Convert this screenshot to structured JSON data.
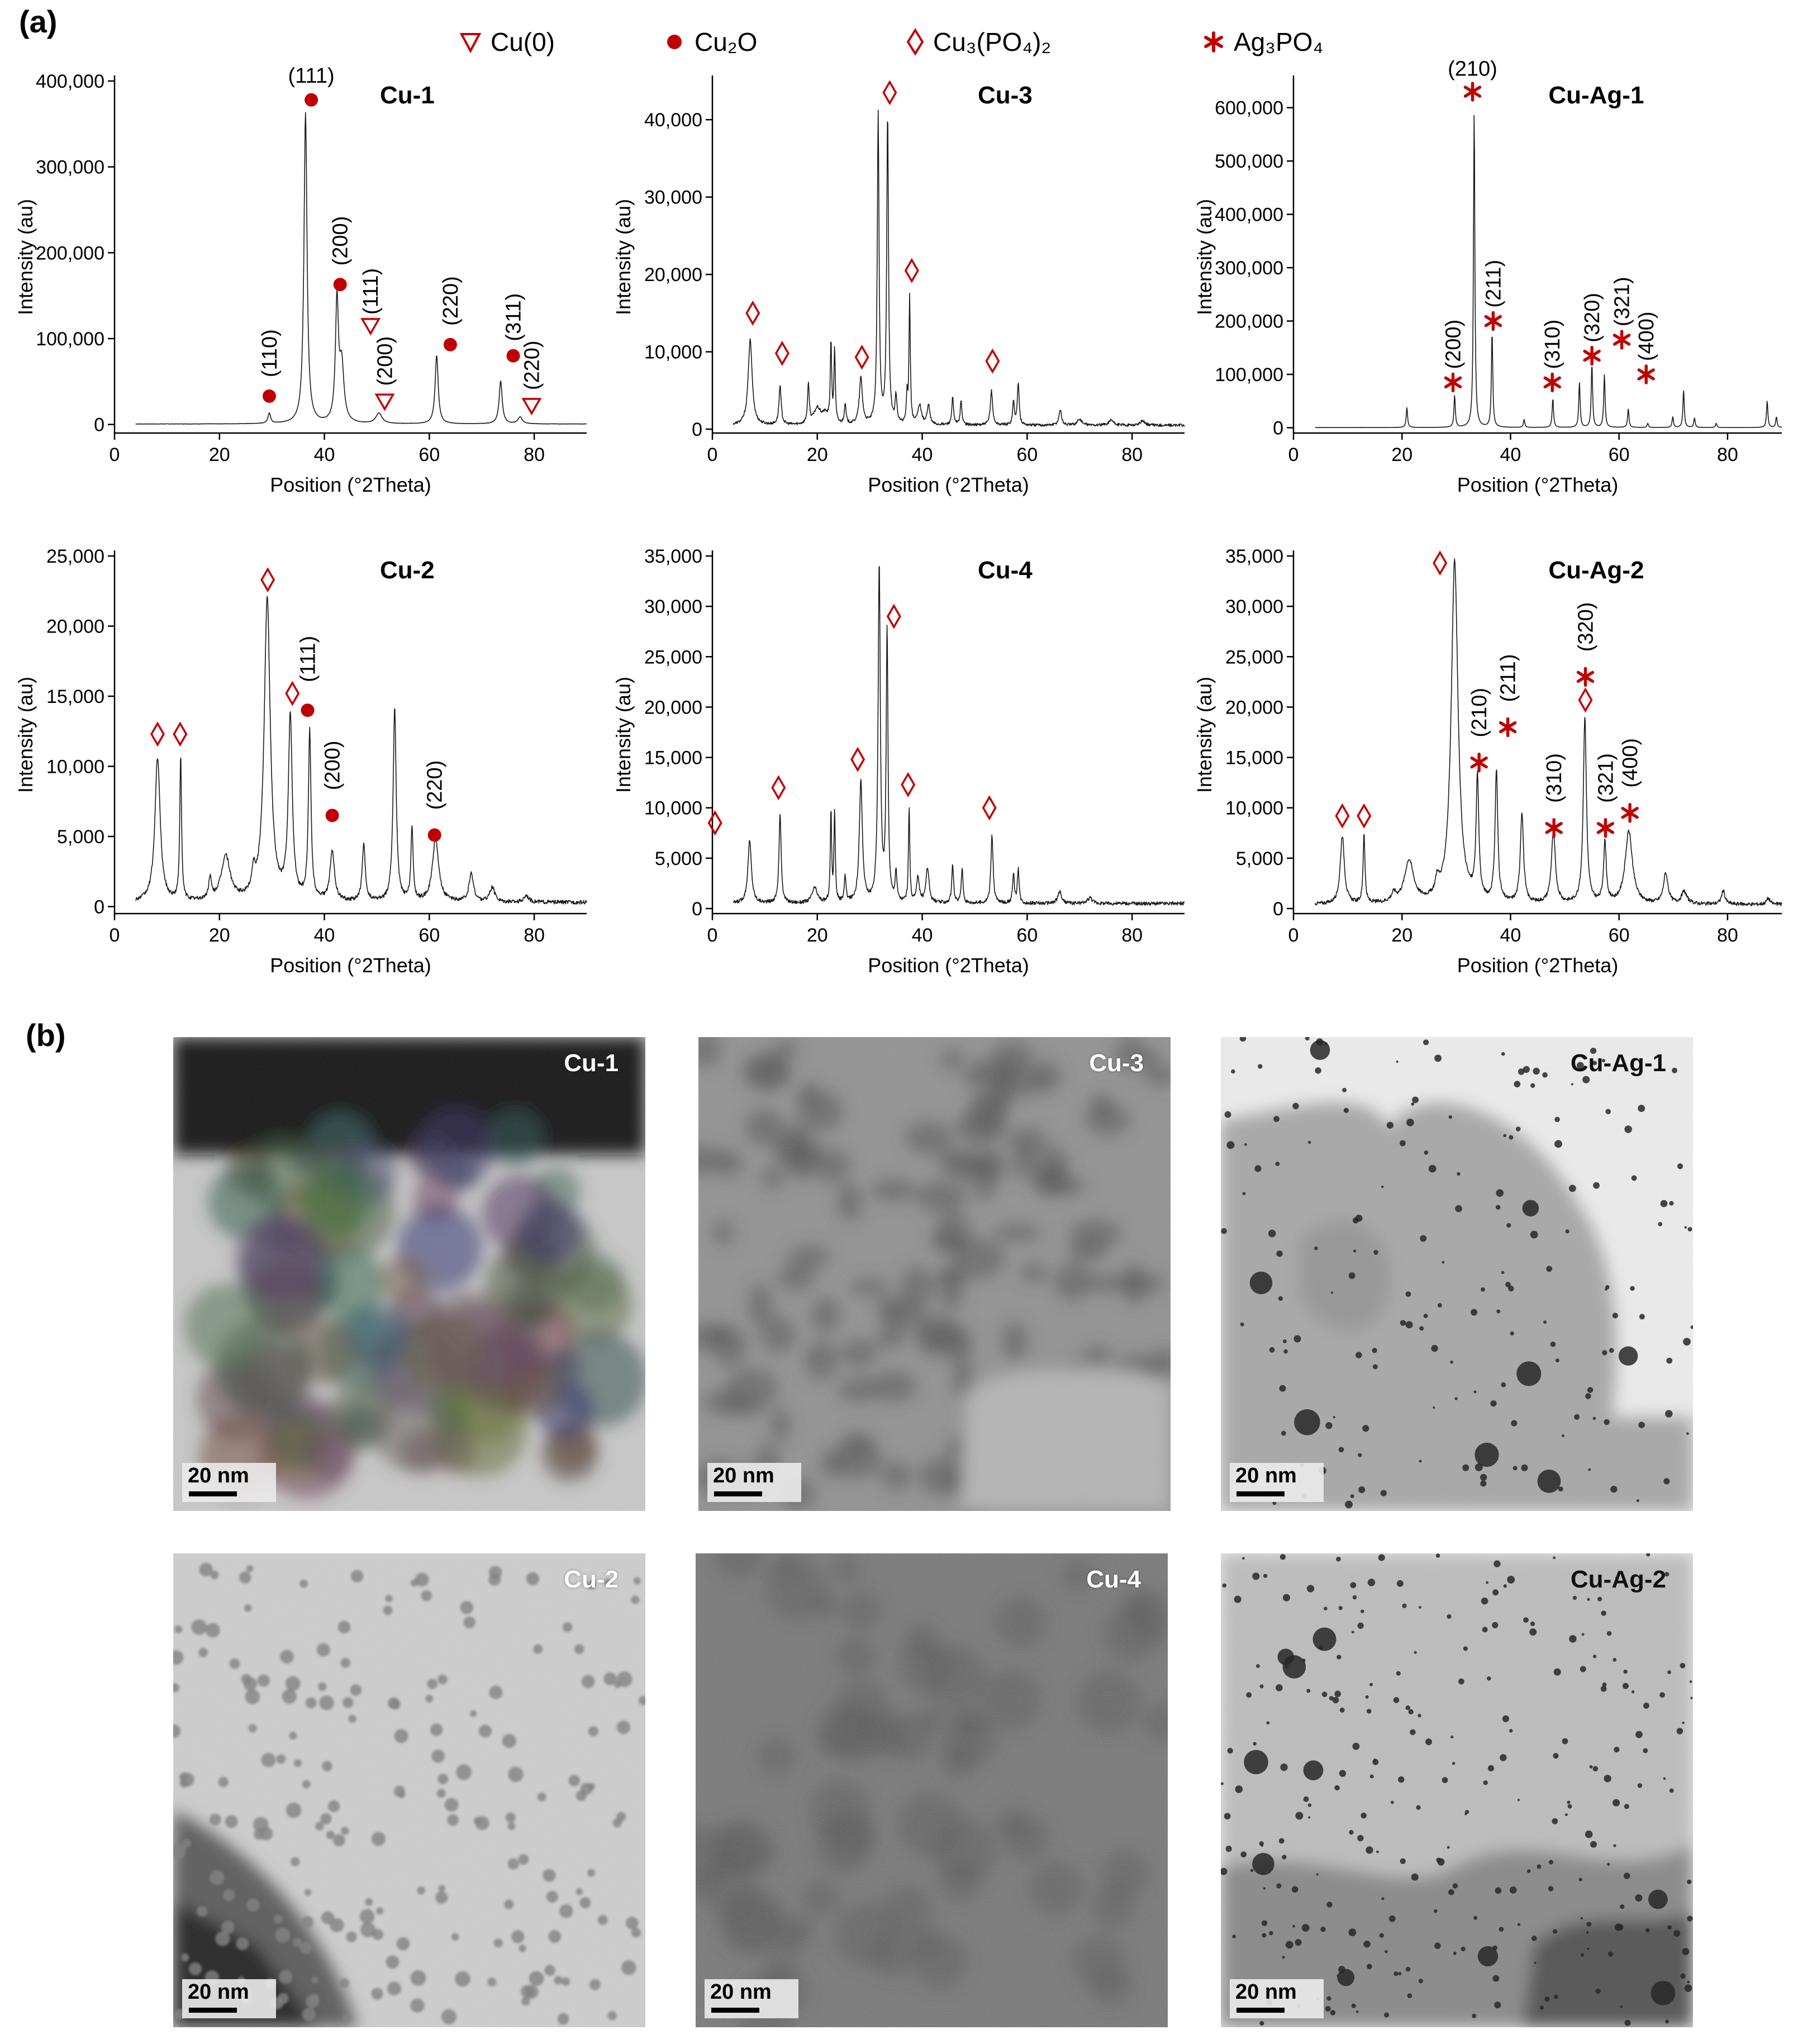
{
  "panel_a_label": "(a)",
  "panel_b_label": "(b)",
  "legend": [
    {
      "symbol": "triangle",
      "color": "#c00000",
      "text": "Cu(0)"
    },
    {
      "symbol": "circle",
      "color": "#c00000",
      "text": "Cu₂O"
    },
    {
      "symbol": "diamond",
      "color": "#c00000",
      "text": "Cu₃(PO₄)₂"
    },
    {
      "symbol": "asterisk",
      "color": "#c00000",
      "text": "Ag₃PO₄"
    }
  ],
  "chart_data": [
    {
      "type": "line",
      "title": "Cu-1",
      "xlabel": "Position (°2Theta)",
      "ylabel": "Intensity (au)",
      "xlim": [
        0,
        90
      ],
      "ylim": [
        -10000,
        400000
      ],
      "xticks": [
        0,
        20,
        40,
        60,
        80
      ],
      "yticks": [
        0,
        100000,
        200000,
        300000,
        400000
      ],
      "ytick_labels": [
        "0",
        "100,000",
        "200,000",
        "300,000",
        "400,000"
      ],
      "baseline": 500,
      "noise": 200,
      "peaks": [
        [
          29.5,
          12000,
          0.3
        ],
        [
          36.4,
          362000,
          0.35
        ],
        [
          42.4,
          140000,
          0.35
        ],
        [
          43.3,
          65000,
          0.5
        ],
        [
          50.4,
          12000,
          0.7
        ],
        [
          61.4,
          80000,
          0.35
        ],
        [
          73.6,
          50000,
          0.35
        ],
        [
          77.3,
          8000,
          0.5
        ]
      ],
      "markers": [
        {
          "x": 29.5,
          "y": 33000,
          "symbol": "circle",
          "label": "(110)",
          "label_y": 55000,
          "rot": -90
        },
        {
          "x": 37.5,
          "y": 378000,
          "symbol": "circle",
          "label": "(111)",
          "label_y": 398000,
          "rot": 0
        },
        {
          "x": 43.0,
          "y": 163000,
          "symbol": "circle",
          "label": "(200)",
          "label_y": 185000,
          "rot": -90
        },
        {
          "x": 48.8,
          "y": 115000,
          "symbol": "triangle",
          "label": "(111)",
          "label_y": 128000,
          "rot": -90
        },
        {
          "x": 51.5,
          "y": 27000,
          "symbol": "triangle",
          "label": "(200)",
          "label_y": 45000,
          "rot": -90
        },
        {
          "x": 64.0,
          "y": 93000,
          "symbol": "circle",
          "label": "(220)",
          "label_y": 115000,
          "rot": -90
        },
        {
          "x": 76.0,
          "y": 80000,
          "symbol": "circle",
          "label": "(311)",
          "label_y": 97000,
          "rot": -90
        },
        {
          "x": 79.5,
          "y": 22000,
          "symbol": "triangle",
          "label": "(220)",
          "label_y": 40000,
          "rot": -90
        }
      ]
    },
    {
      "type": "line",
      "title": "Cu-3",
      "xlabel": "Position (°2Theta)",
      "ylabel": "Intensity (au)",
      "xlim": [
        0,
        90
      ],
      "ylim": [
        -500,
        45000
      ],
      "xticks": [
        0,
        20,
        40,
        60,
        80
      ],
      "yticks": [
        0,
        10000,
        20000,
        30000,
        40000
      ],
      "ytick_labels": [
        "0",
        "10,000",
        "20,000",
        "30,000",
        "40,000"
      ],
      "baseline": 500,
      "noise": 180,
      "peaks": [
        [
          7.2,
          11000,
          0.45
        ],
        [
          12.9,
          5000,
          0.25
        ],
        [
          18.3,
          5000,
          0.2
        ],
        [
          20.0,
          2000,
          0.8
        ],
        [
          21.5,
          1200,
          0.7
        ],
        [
          22.6,
          10500,
          0.15
        ],
        [
          23.3,
          9500,
          0.15
        ],
        [
          25.3,
          2500,
          0.2
        ],
        [
          28.3,
          6000,
          0.35
        ],
        [
          31.6,
          40000,
          0.2
        ],
        [
          33.4,
          40000,
          0.2
        ],
        [
          35.0,
          3500,
          0.2
        ],
        [
          37.1,
          3500,
          0.15
        ],
        [
          37.6,
          16500,
          0.15
        ],
        [
          39.5,
          2500,
          0.4
        ],
        [
          41.2,
          2500,
          0.3
        ],
        [
          45.8,
          3500,
          0.2
        ],
        [
          47.4,
          3000,
          0.2
        ],
        [
          53.2,
          4500,
          0.25
        ],
        [
          57.4,
          3000,
          0.2
        ],
        [
          58.3,
          5500,
          0.2
        ],
        [
          66.3,
          2000,
          0.3
        ],
        [
          70.0,
          800,
          0.5
        ],
        [
          76.0,
          700,
          0.5
        ],
        [
          82.0,
          600,
          0.5
        ]
      ],
      "markers": [
        {
          "x": 7.7,
          "y": 15000,
          "symbol": "diamond"
        },
        {
          "x": 13.3,
          "y": 9800,
          "symbol": "diamond"
        },
        {
          "x": 28.5,
          "y": 9300,
          "symbol": "diamond"
        },
        {
          "x": 33.8,
          "y": 43500,
          "symbol": "diamond"
        },
        {
          "x": 38.0,
          "y": 20500,
          "symbol": "diamond"
        },
        {
          "x": 53.4,
          "y": 8800,
          "symbol": "diamond"
        }
      ]
    },
    {
      "type": "line",
      "title": "Cu-Ag-1",
      "xlabel": "Position (°2Theta)",
      "ylabel": "Intensity (au)",
      "xlim": [
        0,
        90
      ],
      "ylim": [
        -10000,
        650000
      ],
      "xticks": [
        0,
        20,
        40,
        60,
        80
      ],
      "yticks": [
        0,
        100000,
        200000,
        300000,
        400000,
        500000,
        600000
      ],
      "ytick_labels": [
        "0",
        "100,000",
        "200,000",
        "300,000",
        "400,000",
        "500,000",
        "600,000"
      ],
      "baseline": 300,
      "noise": 150,
      "peaks": [
        [
          20.9,
          38000,
          0.15
        ],
        [
          29.7,
          60000,
          0.15
        ],
        [
          33.3,
          595000,
          0.15
        ],
        [
          36.6,
          180000,
          0.15
        ],
        [
          42.5,
          15000,
          0.15
        ],
        [
          47.8,
          55000,
          0.15
        ],
        [
          52.7,
          85000,
          0.15
        ],
        [
          55.0,
          120000,
          0.15
        ],
        [
          57.3,
          100000,
          0.15
        ],
        [
          61.7,
          35000,
          0.15
        ],
        [
          65.3,
          8000,
          0.15
        ],
        [
          69.9,
          20000,
          0.15
        ],
        [
          71.9,
          70000,
          0.15
        ],
        [
          73.9,
          18000,
          0.15
        ],
        [
          77.9,
          8000,
          0.15
        ],
        [
          87.3,
          50000,
          0.15
        ],
        [
          89.0,
          20000,
          0.15
        ]
      ],
      "markers": [
        {
          "x": 29.4,
          "y": 85000,
          "symbol": "asterisk",
          "label": "(200)",
          "label_y": 110000,
          "rot": -90
        },
        {
          "x": 33.0,
          "y": 630000,
          "symbol": "asterisk",
          "label": "(210)",
          "label_y": 660000,
          "rot": 0
        },
        {
          "x": 36.8,
          "y": 200000,
          "symbol": "asterisk",
          "label": "(211)",
          "label_y": 225000,
          "rot": -90
        },
        {
          "x": 47.7,
          "y": 85000,
          "symbol": "asterisk",
          "label": "(310)",
          "label_y": 110000,
          "rot": -90
        },
        {
          "x": 55.0,
          "y": 135000,
          "symbol": "asterisk",
          "label": "(320)",
          "label_y": 160000,
          "rot": -90
        },
        {
          "x": 60.5,
          "y": 165000,
          "symbol": "asterisk",
          "label": "(321)",
          "label_y": 190000,
          "rot": -90
        },
        {
          "x": 65.0,
          "y": 100000,
          "symbol": "asterisk",
          "label": "(400)",
          "label_y": 125000,
          "rot": -90
        }
      ]
    },
    {
      "type": "line",
      "title": "Cu-2",
      "xlabel": "Position (°2Theta)",
      "ylabel": "Intensity (au)",
      "xlim": [
        0,
        90
      ],
      "ylim": [
        -500,
        25000
      ],
      "xticks": [
        0,
        20,
        40,
        60,
        80
      ],
      "yticks": [
        0,
        5000,
        10000,
        15000,
        20000,
        25000
      ],
      "ytick_labels": [
        "0",
        "5,000",
        "10,000",
        "15,000",
        "20,000",
        "25,000"
      ],
      "baseline": 300,
      "noise": 140,
      "peaks": [
        [
          8.2,
          10300,
          0.6
        ],
        [
          12.6,
          10300,
          0.2
        ],
        [
          18.2,
          1500,
          0.3
        ],
        [
          21.2,
          3200,
          1.0
        ],
        [
          26.5,
          1500,
          0.4
        ],
        [
          29.1,
          21500,
          0.7
        ],
        [
          33.5,
          13000,
          0.45
        ],
        [
          37.2,
          12000,
          0.3
        ],
        [
          41.5,
          3500,
          0.5
        ],
        [
          47.5,
          4000,
          0.35
        ],
        [
          53.4,
          13800,
          0.35
        ],
        [
          56.7,
          5200,
          0.25
        ],
        [
          61.2,
          4500,
          0.7
        ],
        [
          68.0,
          2000,
          0.5
        ],
        [
          72.0,
          1000,
          0.6
        ],
        [
          78.5,
          500,
          0.5
        ]
      ],
      "markers": [
        {
          "x": 8.2,
          "y": 12300,
          "symbol": "diamond"
        },
        {
          "x": 12.5,
          "y": 12300,
          "symbol": "diamond"
        },
        {
          "x": 29.2,
          "y": 23300,
          "symbol": "diamond"
        },
        {
          "x": 33.9,
          "y": 15200,
          "symbol": "diamond"
        },
        {
          "x": 36.8,
          "y": 14000,
          "symbol": "circle",
          "label": "(111)",
          "label_y": 16000,
          "rot": -90
        },
        {
          "x": 41.5,
          "y": 6500,
          "symbol": "circle",
          "label": "(200)",
          "label_y": 8300,
          "rot": -90
        },
        {
          "x": 61.0,
          "y": 5100,
          "symbol": "circle",
          "label": "(220)",
          "label_y": 6900,
          "rot": -90
        }
      ]
    },
    {
      "type": "line",
      "title": "Cu-4",
      "xlabel": "Position (°2Theta)",
      "ylabel": "Intensity (au)",
      "xlim": [
        0,
        90
      ],
      "ylim": [
        -500,
        35000
      ],
      "xticks": [
        0,
        20,
        40,
        60,
        80
      ],
      "yticks": [
        0,
        5000,
        10000,
        15000,
        20000,
        25000,
        30000,
        35000
      ],
      "ytick_labels": [
        "0",
        "5,000",
        "10,000",
        "15,000",
        "20,000",
        "25,000",
        "30,000",
        "35,000"
      ],
      "baseline": 500,
      "noise": 180,
      "peaks": [
        [
          7.1,
          6200,
          0.4
        ],
        [
          12.9,
          8800,
          0.25
        ],
        [
          19.5,
          1500,
          0.6
        ],
        [
          22.6,
          9000,
          0.15
        ],
        [
          23.3,
          9000,
          0.15
        ],
        [
          25.3,
          2500,
          0.2
        ],
        [
          28.3,
          12000,
          0.35
        ],
        [
          31.8,
          33500,
          0.25
        ],
        [
          33.3,
          27000,
          0.2
        ],
        [
          35.0,
          3000,
          0.2
        ],
        [
          37.5,
          9500,
          0.15
        ],
        [
          39.2,
          2500,
          0.3
        ],
        [
          41.0,
          3500,
          0.35
        ],
        [
          45.8,
          3800,
          0.2
        ],
        [
          47.6,
          3500,
          0.2
        ],
        [
          53.3,
          6800,
          0.25
        ],
        [
          57.4,
          2800,
          0.2
        ],
        [
          58.3,
          3300,
          0.2
        ],
        [
          66.2,
          1200,
          0.4
        ],
        [
          72.0,
          600,
          0.5
        ]
      ],
      "markers": [
        {
          "x": 0.5,
          "y": 8500,
          "symbol": "diamond"
        },
        {
          "x": 12.6,
          "y": 12000,
          "symbol": "diamond"
        },
        {
          "x": 27.7,
          "y": 14800,
          "symbol": "diamond"
        },
        {
          "x": 34.6,
          "y": 29000,
          "symbol": "diamond"
        },
        {
          "x": 37.3,
          "y": 12300,
          "symbol": "diamond"
        },
        {
          "x": 52.8,
          "y": 10000,
          "symbol": "diamond"
        }
      ]
    },
    {
      "type": "line",
      "title": "Cu-Ag-2",
      "xlabel": "Position (°2Theta)",
      "ylabel": "Intensity (au)",
      "xlim": [
        0,
        90
      ],
      "ylim": [
        -500,
        35000
      ],
      "xticks": [
        0,
        20,
        40,
        60,
        80
      ],
      "yticks": [
        0,
        5000,
        10000,
        15000,
        20000,
        25000,
        30000,
        35000
      ],
      "ytick_labels": [
        "0",
        "5,000",
        "10,000",
        "15,000",
        "20,000",
        "25,000",
        "30,000",
        "35,000"
      ],
      "baseline": 400,
      "noise": 180,
      "peaks": [
        [
          9.0,
          6800,
          0.45
        ],
        [
          13.0,
          7000,
          0.2
        ],
        [
          18.5,
          800,
          0.5
        ],
        [
          21.3,
          4200,
          1.0
        ],
        [
          26.5,
          1500,
          0.4
        ],
        [
          29.7,
          34000,
          0.75
        ],
        [
          33.9,
          12000,
          0.3
        ],
        [
          37.4,
          13000,
          0.3
        ],
        [
          42.1,
          9000,
          0.35
        ],
        [
          47.9,
          7000,
          0.45
        ],
        [
          53.7,
          18500,
          0.35
        ],
        [
          57.4,
          6000,
          0.3
        ],
        [
          61.8,
          7200,
          0.8
        ],
        [
          68.6,
          3000,
          0.5
        ],
        [
          72.0,
          1200,
          0.6
        ],
        [
          79.2,
          1300,
          0.4
        ],
        [
          87.5,
          600,
          0.4
        ]
      ],
      "markers": [
        {
          "x": 9.0,
          "y": 9200,
          "symbol": "diamond"
        },
        {
          "x": 13.0,
          "y": 9200,
          "symbol": "diamond"
        },
        {
          "x": 27.0,
          "y": 34300,
          "symbol": "diamond"
        },
        {
          "x": 34.2,
          "y": 14500,
          "symbol": "asterisk",
          "label": "(210)",
          "label_y": 17000,
          "rot": -90
        },
        {
          "x": 39.5,
          "y": 18000,
          "symbol": "asterisk",
          "label": "(211)",
          "label_y": 20500,
          "rot": -90
        },
        {
          "x": 48.0,
          "y": 8000,
          "symbol": "asterisk",
          "label": "(310)",
          "label_y": 10500,
          "rot": -90
        },
        {
          "x": 53.8,
          "y": 20700,
          "symbol": "diamond"
        },
        {
          "x": 53.8,
          "y": 23000,
          "symbol": "asterisk",
          "label": "(320)",
          "label_y": 25500,
          "rot": -90
        },
        {
          "x": 57.5,
          "y": 8000,
          "symbol": "asterisk",
          "label": "(321)",
          "label_y": 10500,
          "rot": -90
        },
        {
          "x": 62.0,
          "y": 9500,
          "symbol": "asterisk",
          "label": "(400)",
          "label_y": 12000,
          "rot": -90
        }
      ]
    }
  ],
  "tem_images": [
    {
      "title": "Cu-1",
      "scale": "20 nm",
      "style": "dark-cluster"
    },
    {
      "title": "Cu-3",
      "scale": "20 nm",
      "style": "grainy"
    },
    {
      "title": "Cu-Ag-1",
      "scale": "20 nm",
      "style": "light-dots"
    },
    {
      "title": "Cu-2",
      "scale": "20 nm",
      "style": "sheet-dots"
    },
    {
      "title": "Cu-4",
      "scale": "20 nm",
      "style": "noise"
    },
    {
      "title": "Cu-Ag-2",
      "scale": "20 nm",
      "style": "light-dots-dense"
    }
  ]
}
